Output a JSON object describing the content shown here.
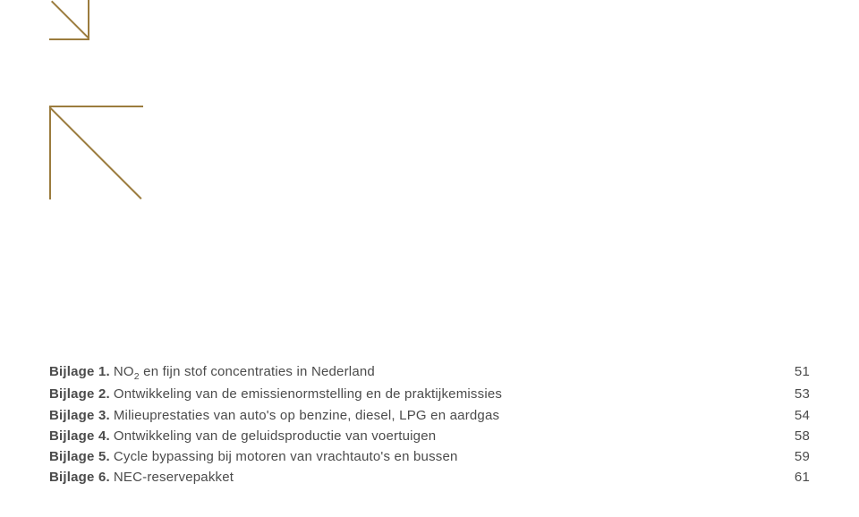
{
  "colors": {
    "arrow": "#9b7c3e",
    "text": "#4b4b4b"
  },
  "toc": {
    "items": [
      {
        "label": "Bijlage 1.",
        "title_html": "NO<sub>2</sub> en fijn stof concentraties in Nederland",
        "page": "51"
      },
      {
        "label": "Bijlage 2.",
        "title_html": "Ontwikkeling van de emissienormstelling en de praktijkemissies",
        "page": "53"
      },
      {
        "label": "Bijlage 3.",
        "title_html": "Milieuprestaties van auto's op benzine, diesel, LPG en aardgas",
        "page": "54"
      },
      {
        "label": "Bijlage 4.",
        "title_html": "Ontwikkeling van de geluidsproductie van voertuigen",
        "page": "58"
      },
      {
        "label": "Bijlage 5.",
        "title_html": "Cycle bypassing bij motoren van vrachtauto's en bussen",
        "page": "59"
      },
      {
        "label": "Bijlage 6.",
        "title_html": "NEC-reservepakket",
        "page": "61"
      }
    ]
  }
}
